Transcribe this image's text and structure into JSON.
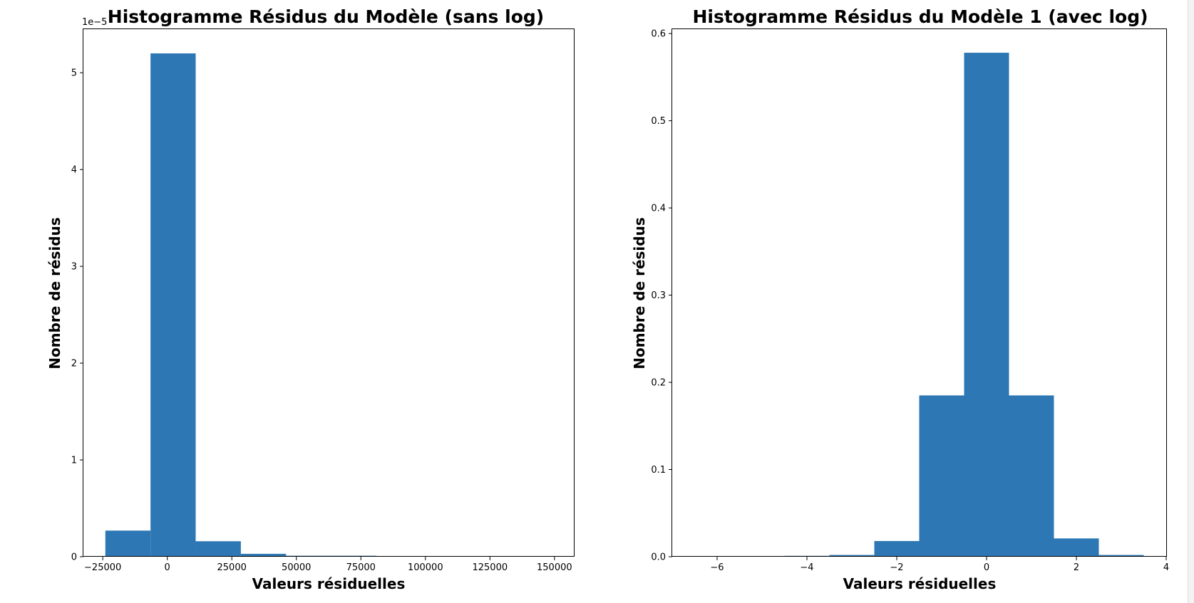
{
  "colors": {
    "bar": "#2d78b4",
    "frame": "#000000",
    "background": "#ffffff"
  },
  "chart_data": [
    {
      "type": "bar",
      "title": "Histogramme Résidus du Modèle  (sans log)",
      "xlabel": "Valeurs résiduelles",
      "ylabel": "Nombre de résidus",
      "y_offset_text": "1e−5",
      "xlim": [
        -32500,
        157500
      ],
      "ylim": [
        0,
        5.45
      ],
      "xticks": [
        -25000,
        0,
        25000,
        50000,
        75000,
        100000,
        125000,
        150000
      ],
      "xtick_labels": [
        "−25000",
        "0",
        "25000",
        "50000",
        "75000",
        "100000",
        "125000",
        "150000"
      ],
      "yticks": [
        0,
        1,
        2,
        3,
        4,
        5
      ],
      "ytick_labels": [
        "0",
        "1",
        "2",
        "3",
        "4",
        "5"
      ],
      "bin_edges": [
        -24000,
        -6500,
        11000,
        28500,
        46000,
        63500,
        81000,
        98500,
        116000,
        133500,
        151000
      ],
      "values": [
        0.27,
        5.2,
        0.16,
        0.03,
        0.01,
        0.01,
        0.0,
        0.0,
        0.0,
        0.0
      ]
    },
    {
      "type": "bar",
      "title": "Histogramme Résidus du Modèle 1 (avec log)",
      "xlabel": "Valeurs résiduelles",
      "ylabel": "Nombre de résidus",
      "xlim": [
        -7,
        4
      ],
      "ylim": [
        0,
        0.605
      ],
      "xticks": [
        -6,
        -4,
        -2,
        0,
        2,
        4
      ],
      "xtick_labels": [
        "−6",
        "−4",
        "−2",
        "0",
        "2",
        "4"
      ],
      "yticks": [
        0,
        0.1,
        0.2,
        0.3,
        0.4,
        0.5,
        0.6
      ],
      "ytick_labels": [
        "0.0",
        "0.1",
        "0.2",
        "0.3",
        "0.4",
        "0.5",
        "0.6"
      ],
      "bin_edges": [
        -6.5,
        -5.5,
        -4.5,
        -3.5,
        -2.5,
        -1.5,
        -0.5,
        0.5,
        1.5,
        2.5,
        3.5
      ],
      "values": [
        0.0,
        0.0,
        0.001,
        0.002,
        0.018,
        0.185,
        0.578,
        0.185,
        0.021,
        0.002
      ]
    }
  ]
}
